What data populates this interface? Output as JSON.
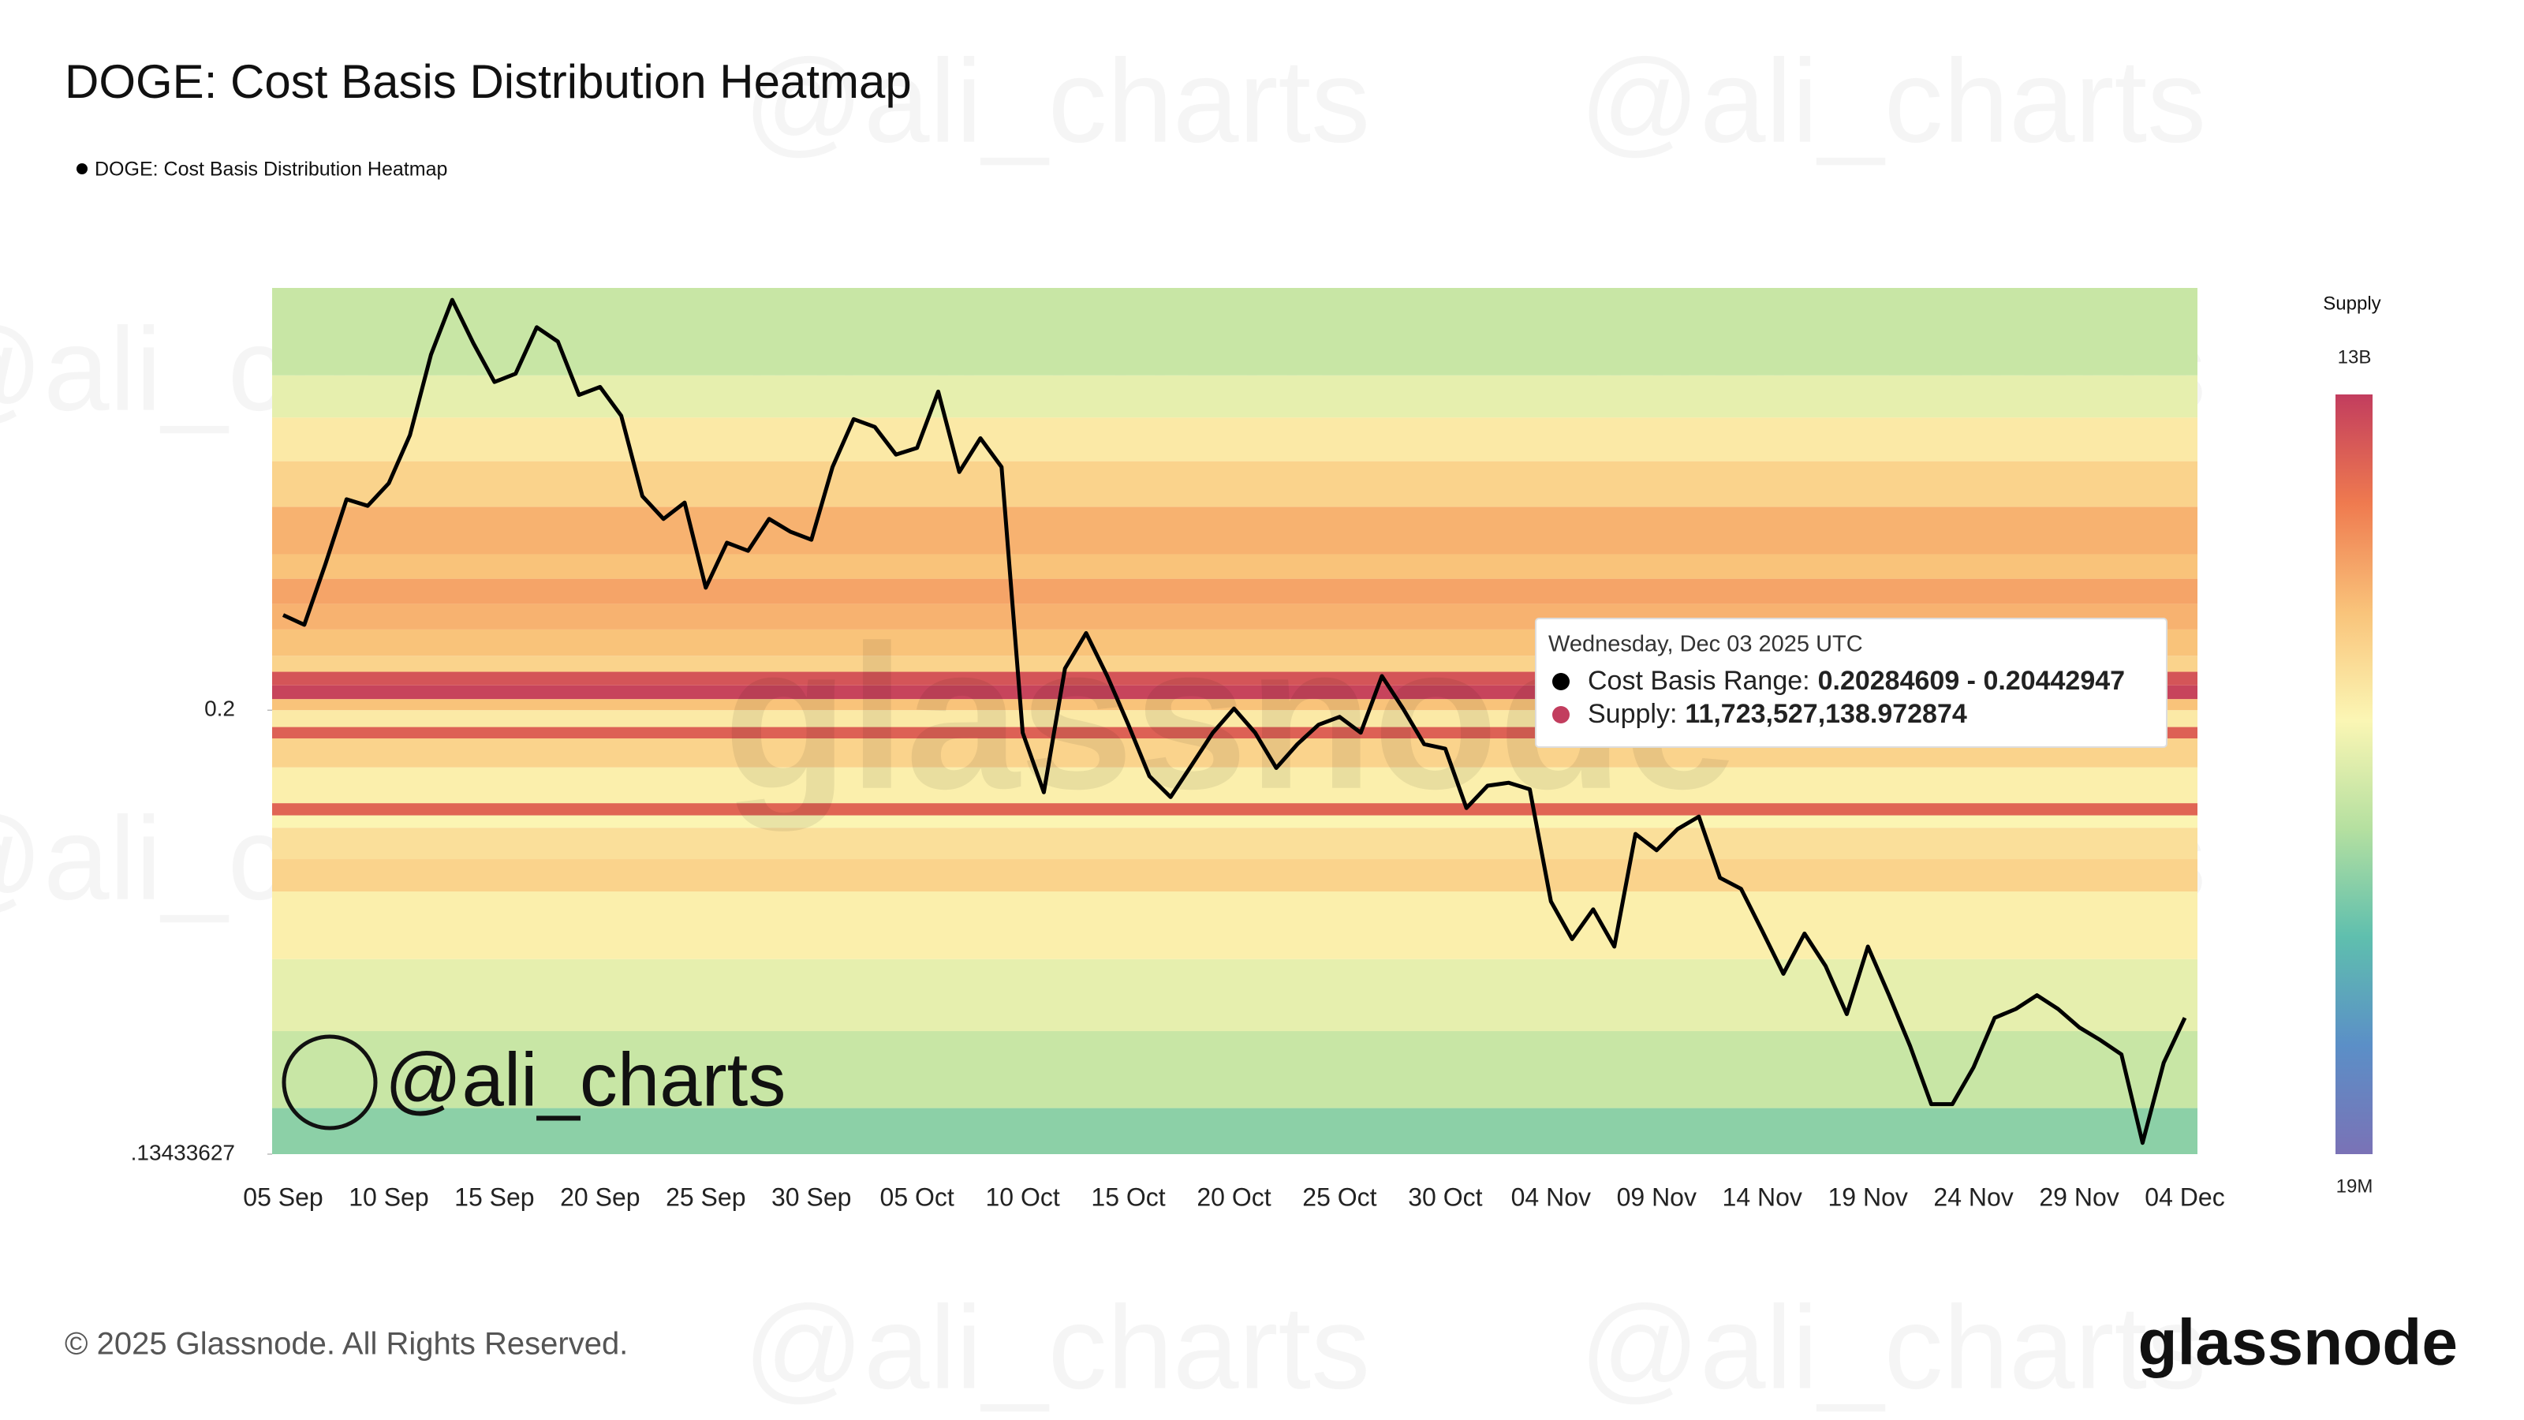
{
  "chart_data": {
    "type": "heatmap-line",
    "title": "DOGE: Cost Basis Distribution Heatmap",
    "legend": "DOGE: Cost Basis Distribution Heatmap",
    "watermark": "@ali_charts",
    "brand": "glassnode",
    "copyright": "© 2025 Glassnode. All Rights Reserved.",
    "log_y": true,
    "categories": [
      "05 Sep",
      null,
      null,
      null,
      null,
      "10 Sep",
      null,
      null,
      null,
      null,
      "15 Sep",
      null,
      null,
      null,
      null,
      "20 Sep",
      null,
      null,
      null,
      null,
      "25 Sep",
      null,
      null,
      null,
      null,
      "30 Sep",
      null,
      null,
      null,
      null,
      "05 Oct",
      null,
      null,
      null,
      null,
      "10 Oct",
      null,
      null,
      null,
      null,
      "15 Oct",
      null,
      null,
      null,
      null,
      "20 Oct",
      null,
      null,
      null,
      null,
      "25 Oct",
      null,
      null,
      null,
      null,
      "30 Oct",
      null,
      null,
      null,
      null,
      "04 Nov",
      null,
      null,
      null,
      null,
      "09 Nov",
      null,
      null,
      null,
      null,
      "14 Nov",
      null,
      null,
      null,
      null,
      "19 Nov",
      null,
      null,
      null,
      null,
      "24 Nov",
      null,
      null,
      null,
      null,
      "29 Nov",
      null,
      null,
      null,
      null,
      "04 Dec"
    ],
    "series": [
      {
        "name": "Price",
        "color": "#000000",
        "values": [
          0.2178,
          0.2159,
          0.228,
          0.2416,
          0.2402,
          0.2451,
          0.2559,
          0.2751,
          0.2889,
          0.2779,
          0.2684,
          0.2704,
          0.2819,
          0.2783,
          0.2653,
          0.2672,
          0.2604,
          0.2423,
          0.2374,
          0.2409,
          0.2232,
          0.2324,
          0.2307,
          0.2374,
          0.2347,
          0.233,
          0.2487,
          0.2596,
          0.2578,
          0.2515,
          0.253,
          0.2661,
          0.2476,
          0.2552,
          0.2487,
          0.196,
          0.1858,
          0.2076,
          0.2143,
          0.2062,
          0.1974,
          0.1885,
          0.185,
          0.1904,
          0.196,
          0.2003,
          0.196,
          0.1899,
          0.194,
          0.1974,
          0.1988,
          0.196,
          0.2062,
          0.2003,
          0.194,
          0.1932,
          0.1832,
          0.1869,
          0.1874,
          0.1863,
          0.1685,
          0.1629,
          0.1673,
          0.1618,
          0.179,
          0.1764,
          0.1798,
          0.1818,
          0.1721,
          0.1704,
          0.1641,
          0.1579,
          0.1637,
          0.159,
          0.1523,
          0.1618,
          0.1549,
          0.148,
          0.1405,
          0.1405,
          0.1452,
          0.1518,
          0.153,
          0.1549,
          0.153,
          0.1505,
          0.1488,
          0.1469,
          0.1357,
          0.1458,
          0.1518
        ]
      }
    ],
    "ylim": [
      0.13433627,
      0.292
    ],
    "yticks": [
      {
        "value": 0.13433627,
        "label": ".13433627"
      },
      0.2
    ],
    "heatmap": {
      "price_bins": [
        0.13433627,
        0.14,
        0.15,
        0.16,
        0.17,
        0.175,
        0.18,
        0.182,
        0.184,
        0.19,
        0.195,
        0.197,
        0.2,
        0.202,
        0.2045,
        0.207,
        0.21,
        0.215,
        0.22,
        0.225,
        0.23,
        0.24,
        0.25,
        0.26,
        0.27,
        0.292
      ],
      "supply": [
        200000000,
        400000000,
        600000000,
        900000000,
        1500000000,
        1200000000,
        800000000,
        7000000000,
        900000000,
        1500000000,
        7500000000,
        1000000000,
        2000000000,
        11700000000,
        9000000000,
        1500000000,
        2000000000,
        2500000000,
        3000000000,
        2000000000,
        2500000000,
        1500000000,
        1000000000,
        600000000,
        400000000
      ]
    },
    "colorbar": {
      "title": "Supply",
      "zlim": [
        19000000,
        13000000000
      ],
      "ticks": [
        {
          "value": 13000000000,
          "label": "13B"
        },
        {
          "value": 19000000,
          "label": "19M"
        }
      ],
      "colorscale": [
        "#7a72b6",
        "#5b8fc7",
        "#5fbfae",
        "#b5e0a0",
        "#fbf6b4",
        "#f9c37a",
        "#ef7a4f",
        "#c23d5e"
      ]
    },
    "tooltip": {
      "date": "Wednesday, Dec 03 2025 UTC",
      "range_label": "Cost Basis Range:",
      "range_value": "0.20284609 - 0.20442947",
      "supply_label": "Supply:",
      "supply_value": "11,723,527,138.972874"
    }
  }
}
